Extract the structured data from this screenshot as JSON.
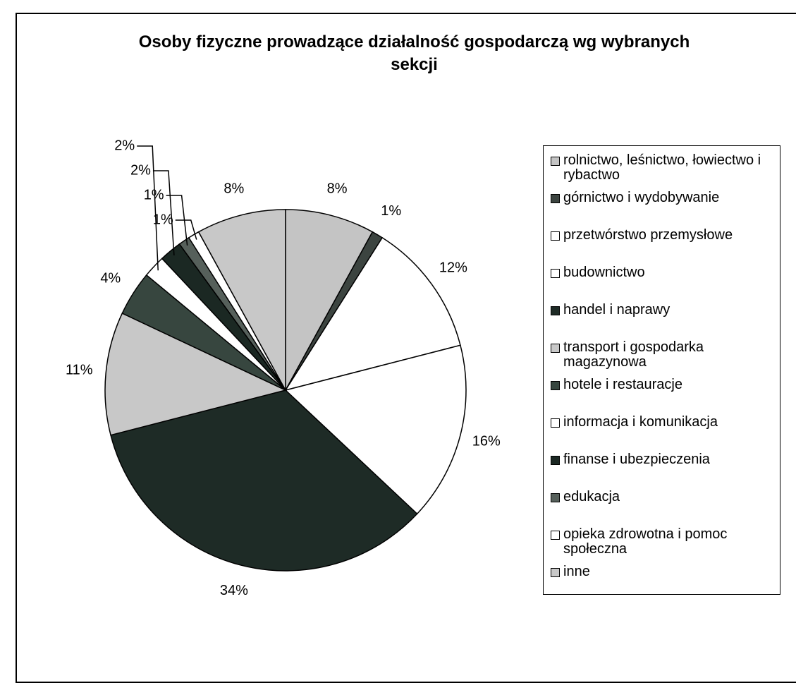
{
  "chart_data": {
    "type": "pie",
    "title": "Osoby fizyczne prowadzące działalność gospodarczą wg wybranych sekcji",
    "categories": [
      "rolnictwo, leśnictwo, łowiectwo i rybactwo",
      "górnictwo i wydobywanie",
      "przetwórstwo przemysłowe",
      "budownictwo",
      "handel i naprawy",
      "transport i gospodarka magazynowa",
      "hotele i restauracje",
      "informacja i komunikacja",
      "finanse i ubezpieczenia",
      "edukacja",
      "opieka zdrowotna i pomoc społeczna",
      "inne"
    ],
    "values": [
      8,
      1,
      12,
      16,
      34,
      11,
      4,
      2,
      2,
      1,
      1,
      8
    ],
    "value_labels": [
      "8%",
      "1%",
      "12%",
      "16%",
      "34%",
      "11%",
      "4%",
      "2%",
      "2%",
      "1%",
      "1%",
      "8%"
    ],
    "colors": [
      "#c4c4c4",
      "#3c4440",
      "#ffffff",
      "#ffffff",
      "#1e2b26",
      "#c8c8c8",
      "#37463f",
      "#ffffff",
      "#1b2823",
      "#56605b",
      "#ffffff",
      "#c8c8c8"
    ],
    "legend": "right"
  }
}
